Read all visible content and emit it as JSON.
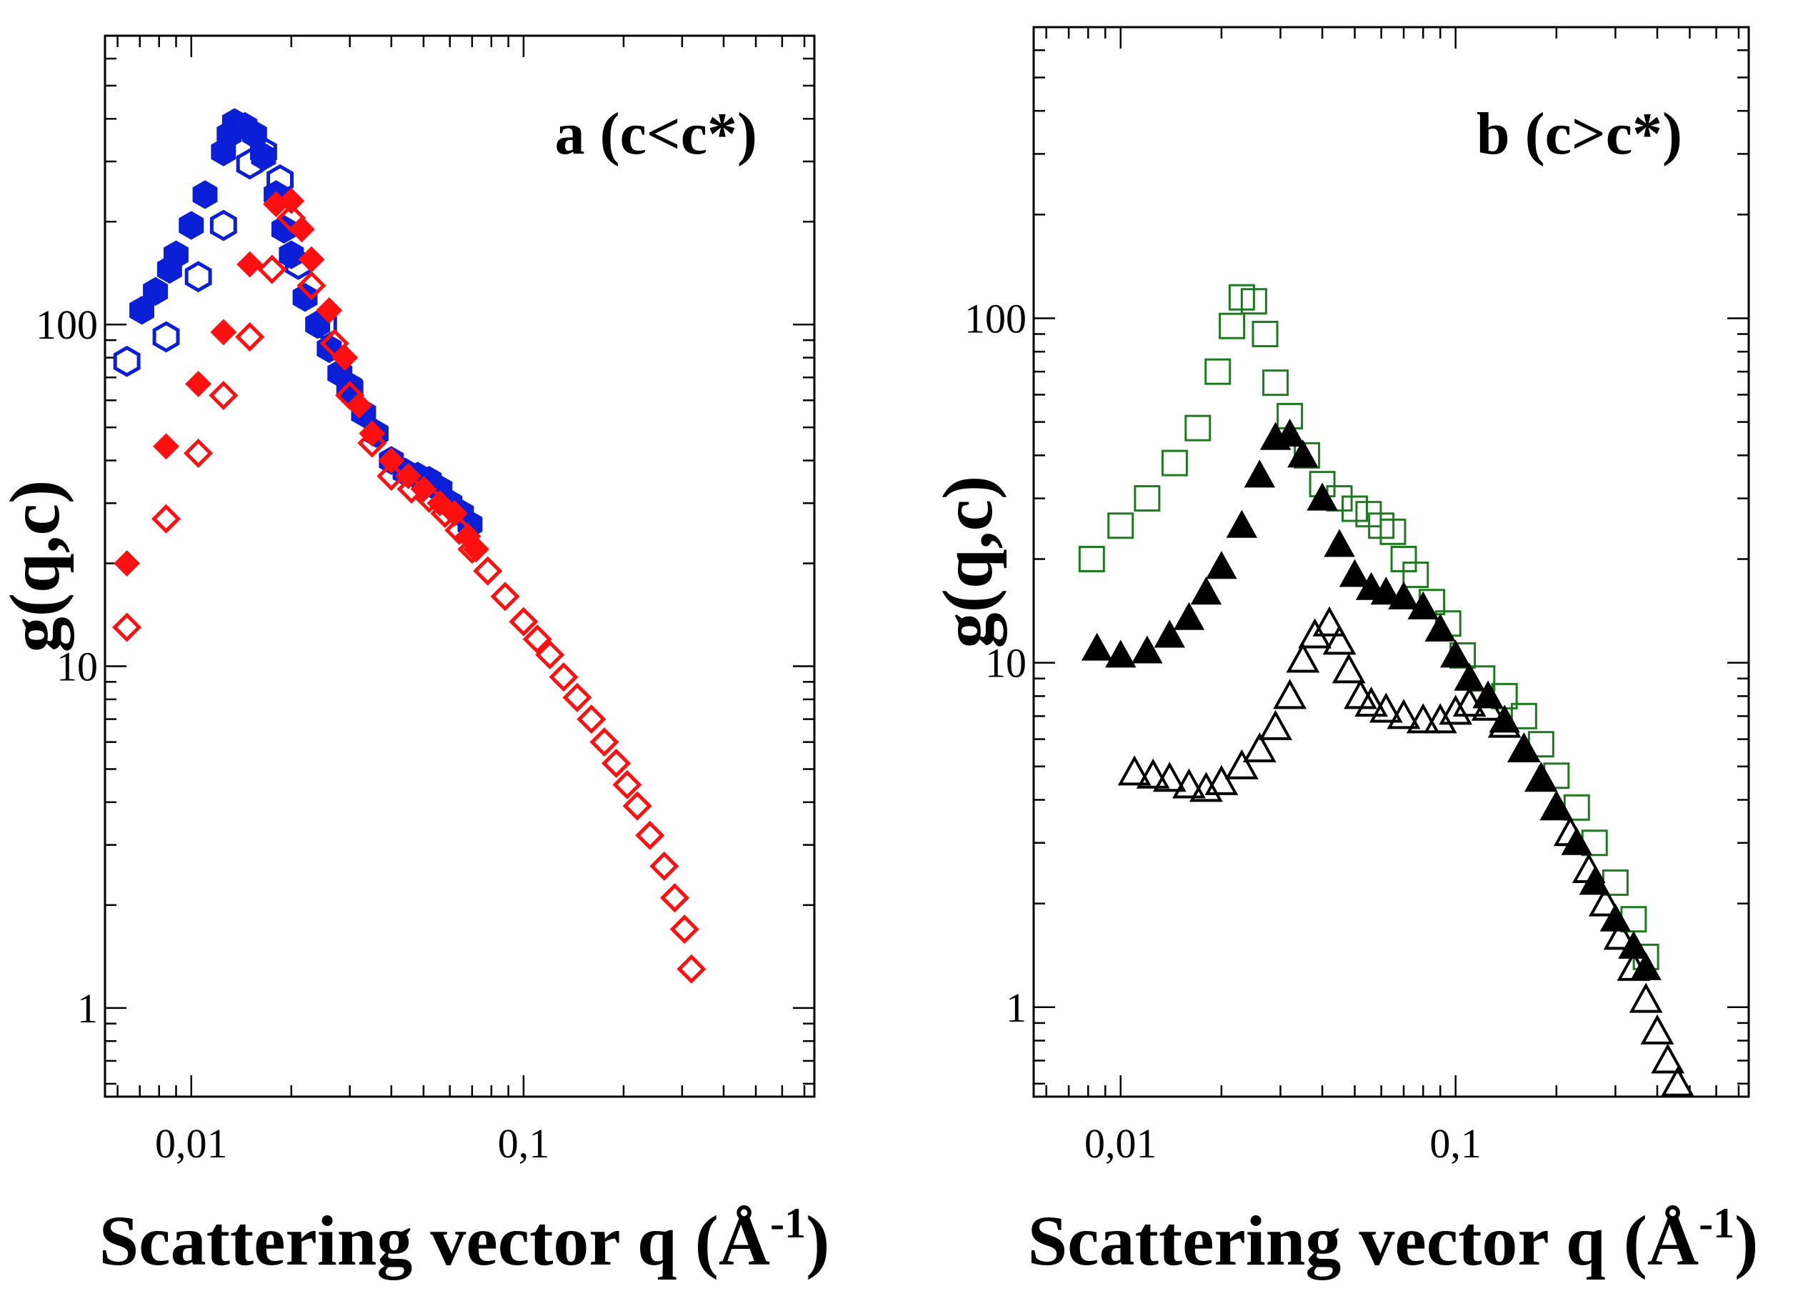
{
  "chart_data": [
    {
      "panel": "a",
      "type": "scatter",
      "annotation": "a (c<c*)",
      "xlabel_main": "Scattering  vector q (Å",
      "xlabel_sup": "-1",
      "xlabel_end": ")",
      "ylabel": "g(q,c)",
      "xscale": "log",
      "yscale": "log",
      "xlim": [
        0.0055,
        0.75
      ],
      "ylim": [
        0.55,
        700
      ],
      "x_ticks": [
        {
          "v": 0.01,
          "label": "0,01"
        },
        {
          "v": 0.1,
          "label": "0,1"
        }
      ],
      "y_ticks": [
        {
          "v": 1,
          "label": "1"
        },
        {
          "v": 10,
          "label": "10"
        },
        {
          "v": 100,
          "label": "100"
        }
      ],
      "series": [
        {
          "name": "filled circles",
          "marker": "hexagon",
          "filled": true,
          "color": "#0a1fd6",
          "x": [
            0.0071,
            0.0078,
            0.0086,
            0.009,
            0.01,
            0.011,
            0.0125,
            0.013,
            0.0135,
            0.0145,
            0.0155,
            0.0165,
            0.018,
            0.019,
            0.02,
            0.022,
            0.024,
            0.026,
            0.028,
            0.03,
            0.033,
            0.036,
            0.04,
            0.044,
            0.048,
            0.052,
            0.056,
            0.06,
            0.065,
            0.069
          ],
          "y": [
            110,
            125,
            145,
            160,
            195,
            240,
            320,
            360,
            390,
            380,
            360,
            310,
            240,
            190,
            160,
            120,
            100,
            85,
            72,
            66,
            55,
            48,
            40,
            37,
            36,
            35,
            33,
            30,
            28,
            26
          ]
        },
        {
          "name": "open circles",
          "marker": "hexagon",
          "filled": false,
          "color": "#0a1fd6",
          "x": [
            0.0064,
            0.0084,
            0.0105,
            0.0125,
            0.015,
            0.0165,
            0.0185,
            0.021,
            0.025,
            0.03
          ],
          "y": [
            78,
            92,
            138,
            195,
            295,
            320,
            265,
            150,
            100,
            65
          ]
        },
        {
          "name": "filled diamonds",
          "marker": "diamond",
          "filled": true,
          "color": "#ff1010",
          "x": [
            0.0064,
            0.0084,
            0.0105,
            0.0125,
            0.015,
            0.018,
            0.02,
            0.0215,
            0.023,
            0.026,
            0.029,
            0.032,
            0.035,
            0.04,
            0.045,
            0.05,
            0.056,
            0.062,
            0.068,
            0.072
          ],
          "y": [
            20,
            44,
            67,
            95,
            150,
            225,
            230,
            190,
            155,
            110,
            80,
            58,
            48,
            40,
            36,
            33,
            30,
            28,
            24,
            22
          ]
        },
        {
          "name": "open diamonds",
          "marker": "diamond",
          "filled": false,
          "color": "#ff1010",
          "x": [
            0.0064,
            0.0084,
            0.0105,
            0.0125,
            0.015,
            0.0175,
            0.02,
            0.023,
            0.027,
            0.03,
            0.035,
            0.04,
            0.046,
            0.052,
            0.058,
            0.064,
            0.07,
            0.078,
            0.088,
            0.1,
            0.11,
            0.12,
            0.132,
            0.145,
            0.16,
            0.175,
            0.19,
            0.205,
            0.22,
            0.24,
            0.265,
            0.285,
            0.305,
            0.32
          ],
          "y": [
            13,
            27,
            42,
            62,
            92,
            145,
            205,
            130,
            88,
            62,
            45,
            36,
            33,
            31,
            28,
            25,
            22,
            19,
            16,
            13.5,
            12,
            10.8,
            9.3,
            8.1,
            7,
            6,
            5.2,
            4.5,
            3.9,
            3.2,
            2.6,
            2.1,
            1.7,
            1.3
          ]
        }
      ]
    },
    {
      "panel": "b",
      "type": "scatter",
      "annotation": "b (c>c*)",
      "xlabel_main": "Scattering  vector q (Å",
      "xlabel_sup": "-1",
      "xlabel_end": ")",
      "ylabel": "g(q,c)",
      "xscale": "log",
      "yscale": "log",
      "xlim": [
        0.0055,
        0.75
      ],
      "ylim": [
        0.55,
        700
      ],
      "x_ticks": [
        {
          "v": 0.01,
          "label": "0,01"
        },
        {
          "v": 0.1,
          "label": "0,1"
        }
      ],
      "y_ticks": [
        {
          "v": 1,
          "label": "1"
        },
        {
          "v": 10,
          "label": "10"
        },
        {
          "v": 100,
          "label": "100"
        }
      ],
      "series": [
        {
          "name": "open squares",
          "marker": "square",
          "filled": false,
          "color": "#1e7a1e",
          "x": [
            0.0082,
            0.01,
            0.012,
            0.0145,
            0.017,
            0.0195,
            0.0215,
            0.023,
            0.025,
            0.027,
            0.029,
            0.032,
            0.036,
            0.04,
            0.045,
            0.05,
            0.055,
            0.06,
            0.065,
            0.07,
            0.076,
            0.085,
            0.095,
            0.105,
            0.12,
            0.14,
            0.16,
            0.18,
            0.2,
            0.23,
            0.26,
            0.3,
            0.34,
            0.37
          ],
          "y": [
            20,
            25,
            30,
            38,
            48,
            70,
            95,
            115,
            112,
            90,
            65,
            52,
            40,
            33,
            30,
            28,
            27,
            25,
            24,
            20,
            18,
            15,
            13,
            10.5,
            9,
            8,
            7,
            5.8,
            4.7,
            3.8,
            3,
            2.3,
            1.8,
            1.4
          ]
        },
        {
          "name": "filled triangles",
          "marker": "triangle-up",
          "filled": true,
          "color": "#000000",
          "x": [
            0.0085,
            0.01,
            0.012,
            0.014,
            0.016,
            0.018,
            0.02,
            0.023,
            0.026,
            0.029,
            0.032,
            0.035,
            0.04,
            0.045,
            0.05,
            0.056,
            0.062,
            0.07,
            0.08,
            0.09,
            0.1,
            0.11,
            0.125,
            0.14,
            0.16,
            0.18,
            0.2,
            0.23,
            0.26,
            0.3,
            0.34,
            0.37
          ],
          "y": [
            11,
            10.5,
            10.8,
            12,
            13.5,
            16,
            19,
            25,
            35,
            45,
            46,
            40,
            30,
            22,
            18,
            16.5,
            16,
            15.5,
            14.5,
            12.5,
            10.5,
            9,
            8,
            6.8,
            5.6,
            4.6,
            3.8,
            3,
            2.3,
            1.8,
            1.5,
            1.3
          ]
        },
        {
          "name": "open triangles",
          "marker": "triangle-up",
          "filled": false,
          "color": "#000000",
          "x": [
            0.011,
            0.0125,
            0.014,
            0.016,
            0.018,
            0.02,
            0.023,
            0.026,
            0.029,
            0.032,
            0.035,
            0.038,
            0.042,
            0.045,
            0.048,
            0.052,
            0.056,
            0.062,
            0.07,
            0.08,
            0.09,
            0.1,
            0.11,
            0.125,
            0.14,
            0.16,
            0.18,
            0.2,
            0.22,
            0.25,
            0.28,
            0.31,
            0.34,
            0.37,
            0.4,
            0.43,
            0.46
          ],
          "y": [
            4.8,
            4.7,
            4.6,
            4.4,
            4.3,
            4.5,
            5,
            5.6,
            6.5,
            8,
            10.2,
            12,
            13,
            11.5,
            9.5,
            8,
            7.6,
            7.3,
            7,
            6.8,
            6.8,
            7.2,
            7.6,
            7.4,
            6.6,
            5.6,
            4.6,
            3.8,
            3.2,
            2.5,
            2,
            1.6,
            1.3,
            1.05,
            0.85,
            0.7,
            0.6
          ]
        }
      ]
    }
  ]
}
